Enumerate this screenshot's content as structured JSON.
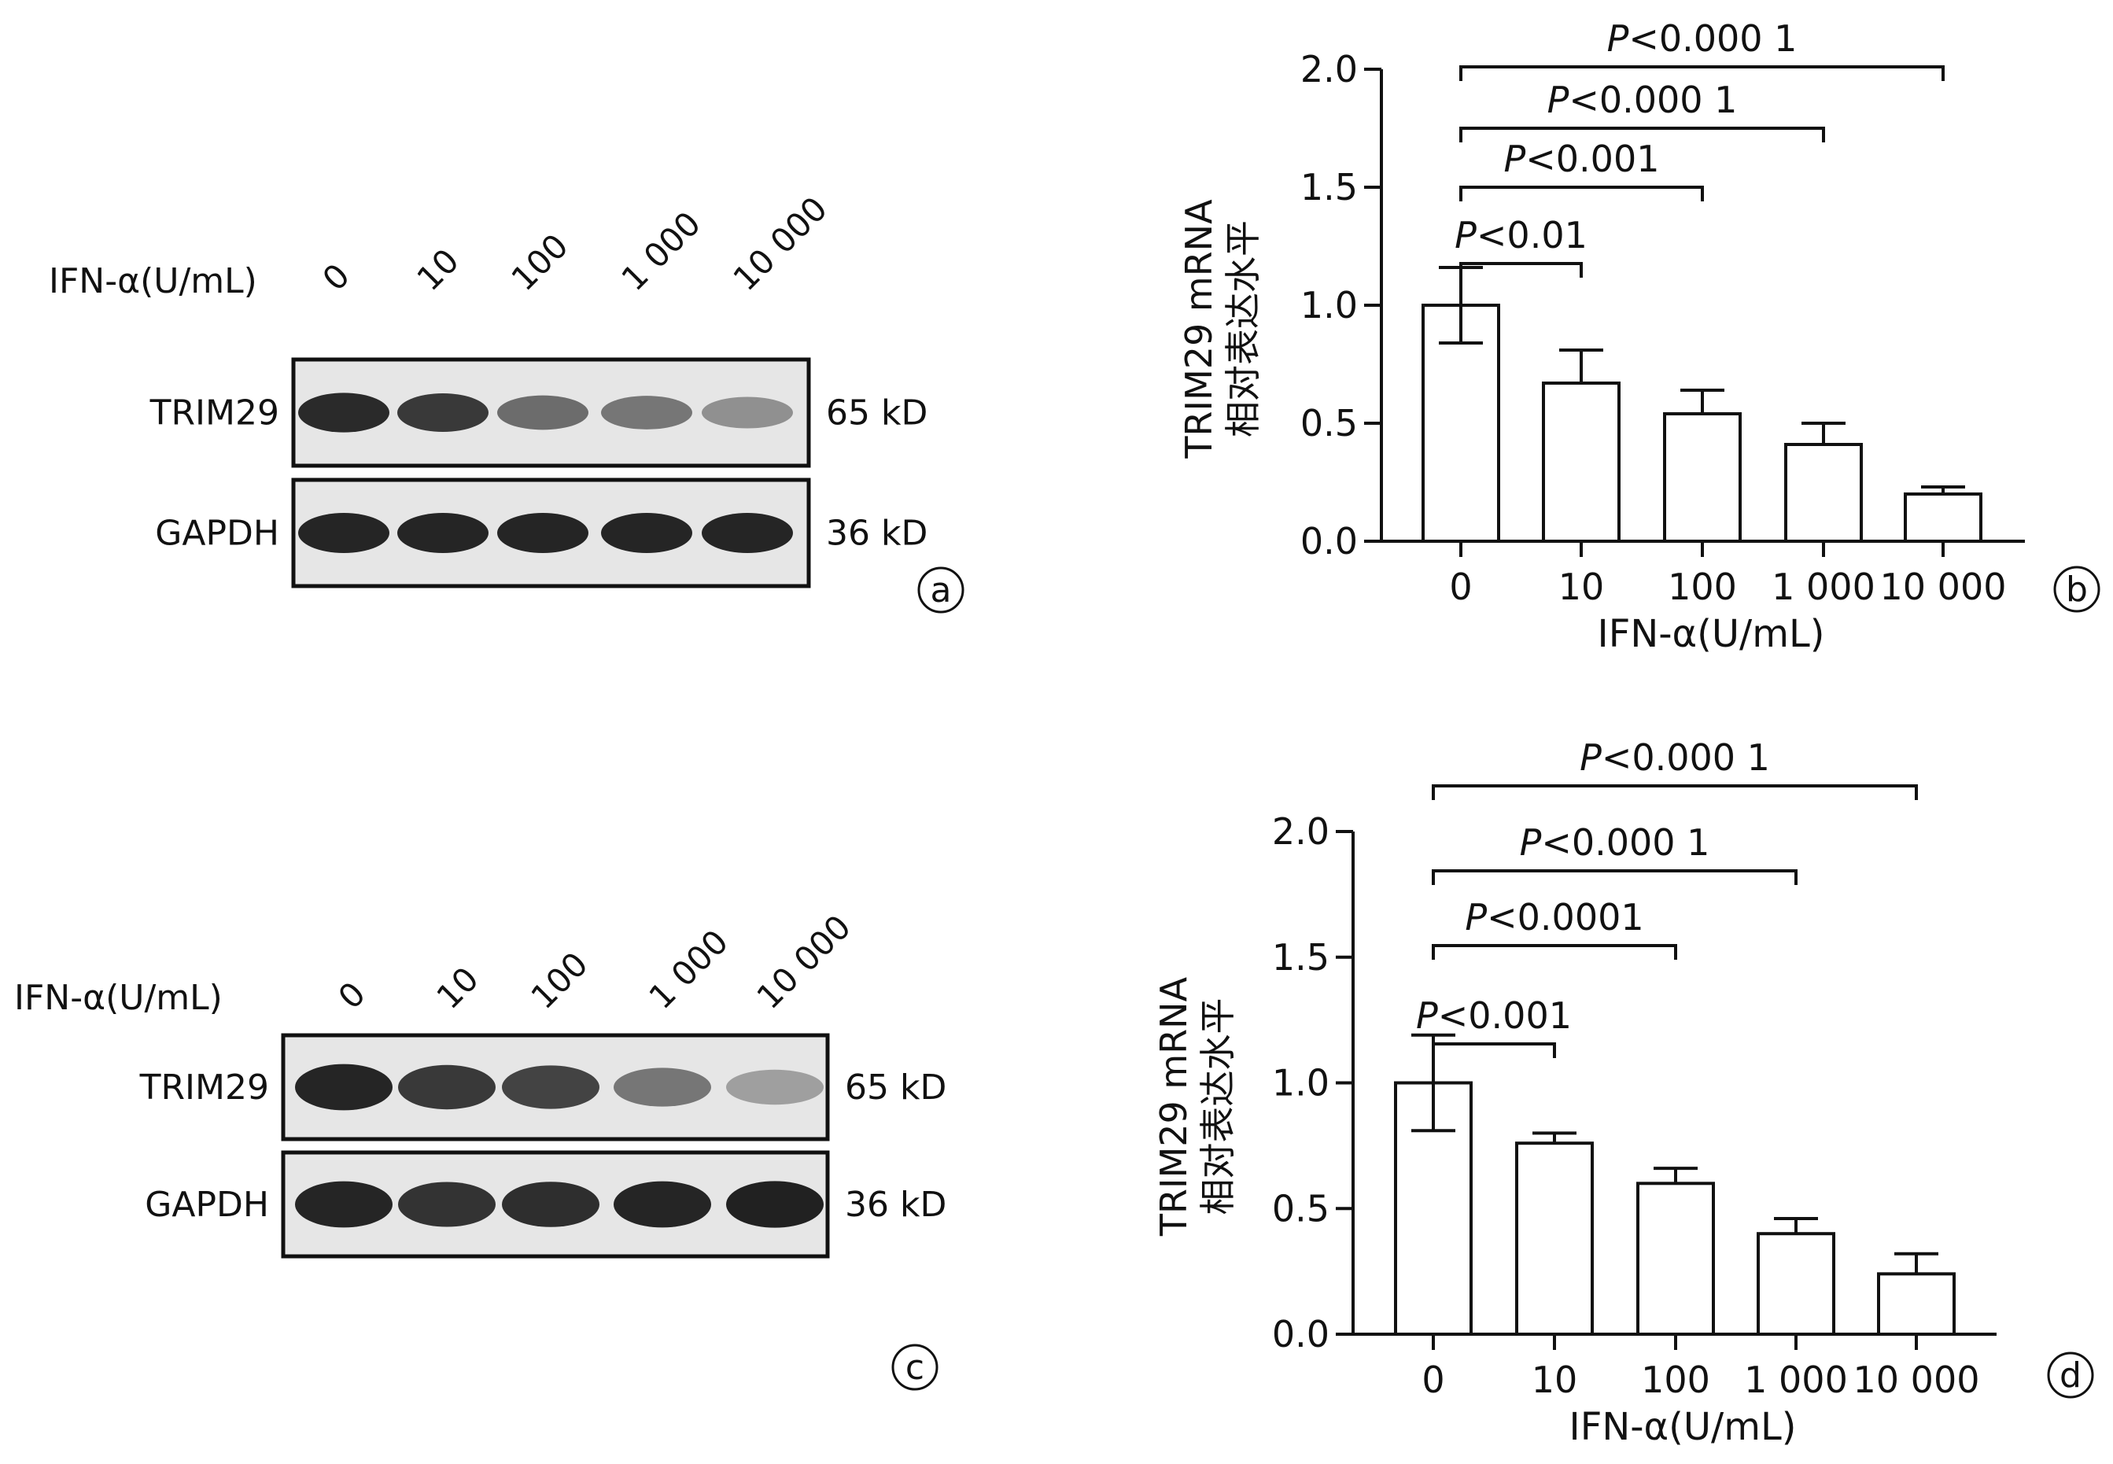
{
  "colors": {
    "ink": "#111111",
    "bar_fill": "#ffffff",
    "band": "#1a1a1a",
    "blot_bg": "#e6e6e6"
  },
  "panels": {
    "a": {
      "letter": "a",
      "treatment_label": "IFN-α(U/mL)",
      "lanes": [
        "0",
        "10",
        "100",
        "1 000",
        "10 000"
      ],
      "rows": [
        {
          "protein": "TRIM29",
          "size": "65 kD",
          "band_intensity": [
            0.92,
            0.85,
            0.6,
            0.55,
            0.42
          ]
        },
        {
          "protein": "GAPDH",
          "size": "36 kD",
          "band_intensity": [
            0.95,
            0.95,
            0.95,
            0.95,
            0.95
          ]
        }
      ]
    },
    "c": {
      "letter": "c",
      "treatment_label": "IFN-α(U/mL)",
      "lanes": [
        "0",
        "10",
        "100",
        "1 000",
        "10 000"
      ],
      "rows": [
        {
          "protein": "TRIM29",
          "size": "65 kD",
          "band_intensity": [
            0.95,
            0.85,
            0.8,
            0.55,
            0.35
          ]
        },
        {
          "protein": "GAPDH",
          "size": "36 kD",
          "band_intensity": [
            0.95,
            0.88,
            0.9,
            0.95,
            0.97
          ]
        }
      ]
    }
  },
  "chart_data": [
    {
      "panel": "b",
      "letter": "b",
      "type": "bar",
      "categories": [
        "0",
        "10",
        "100",
        "1 000",
        "10 000"
      ],
      "values": [
        1.0,
        0.67,
        0.54,
        0.41,
        0.2
      ],
      "errors": [
        0.16,
        0.14,
        0.1,
        0.09,
        0.03
      ],
      "xlabel": "IFN-α(U/mL)",
      "ylabel_line1": "TRIM29 mRNA",
      "ylabel_line2": "相对表达水平",
      "ylim": [
        0,
        2.0
      ],
      "yticks": [
        "0.0",
        "0.5",
        "1.0",
        "1.5",
        "2.0"
      ],
      "grid": false,
      "comparisons": [
        {
          "from": 0,
          "to": 1,
          "label_prefix": "P",
          "label_rest": "<0.01"
        },
        {
          "from": 0,
          "to": 2,
          "label_prefix": "P",
          "label_rest": "<0.001"
        },
        {
          "from": 0,
          "to": 3,
          "label_prefix": "P",
          "label_rest": "<0.000 1"
        },
        {
          "from": 0,
          "to": 4,
          "label_prefix": "P",
          "label_rest": "<0.000 1"
        }
      ]
    },
    {
      "panel": "d",
      "letter": "d",
      "type": "bar",
      "categories": [
        "0",
        "10",
        "100",
        "1 000",
        "10 000"
      ],
      "values": [
        1.0,
        0.76,
        0.6,
        0.4,
        0.24
      ],
      "errors": [
        0.19,
        0.04,
        0.06,
        0.06,
        0.08
      ],
      "xlabel": "IFN-α(U/mL)",
      "ylabel_line1": "TRIM29 mRNA",
      "ylabel_line2": "相对表达水平",
      "ylim": [
        0,
        2.0
      ],
      "yticks": [
        "0.0",
        "0.5",
        "1.0",
        "1.5",
        "2.0"
      ],
      "grid": false,
      "comparisons": [
        {
          "from": 0,
          "to": 1,
          "label_prefix": "P",
          "label_rest": "<0.001"
        },
        {
          "from": 0,
          "to": 2,
          "label_prefix": "P",
          "label_rest": "<0.0001"
        },
        {
          "from": 0,
          "to": 3,
          "label_prefix": "P",
          "label_rest": "<0.000 1"
        },
        {
          "from": 0,
          "to": 4,
          "label_prefix": "P",
          "label_rest": "<0.000 1"
        }
      ]
    }
  ]
}
